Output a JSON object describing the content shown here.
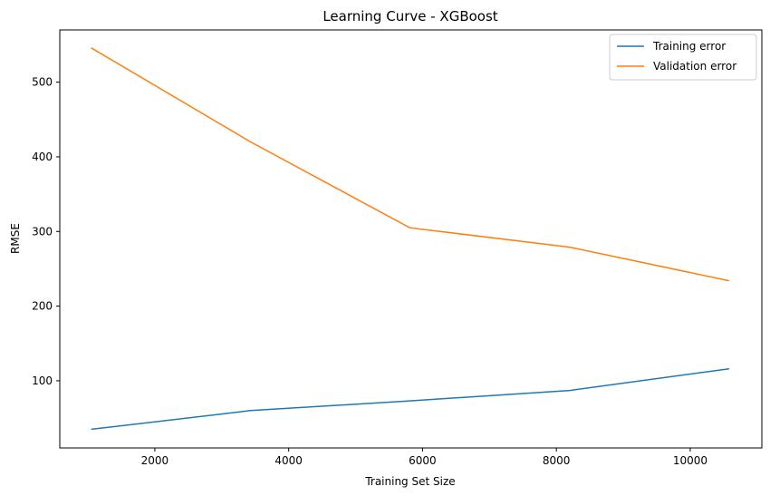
{
  "chart_data": {
    "type": "line",
    "title": "Learning Curve - XGBoost",
    "xlabel": "Training Set Size",
    "ylabel": "RMSE",
    "xlim": [
      580,
      11070
    ],
    "ylim": [
      10,
      570
    ],
    "xticks": [
      2000,
      4000,
      6000,
      8000,
      10000
    ],
    "yticks": [
      100,
      200,
      300,
      400,
      500
    ],
    "x": [
      1050,
      3430,
      5810,
      8200,
      10580
    ],
    "series": [
      {
        "name": "Training error",
        "color": "#1f77b4",
        "values": [
          35,
          60,
          73,
          87,
          116
        ]
      },
      {
        "name": "Validation error",
        "color": "#ff7f0e",
        "values": [
          546,
          420,
          305,
          279,
          234
        ]
      }
    ],
    "grid": false,
    "legend_position": "top-right"
  }
}
